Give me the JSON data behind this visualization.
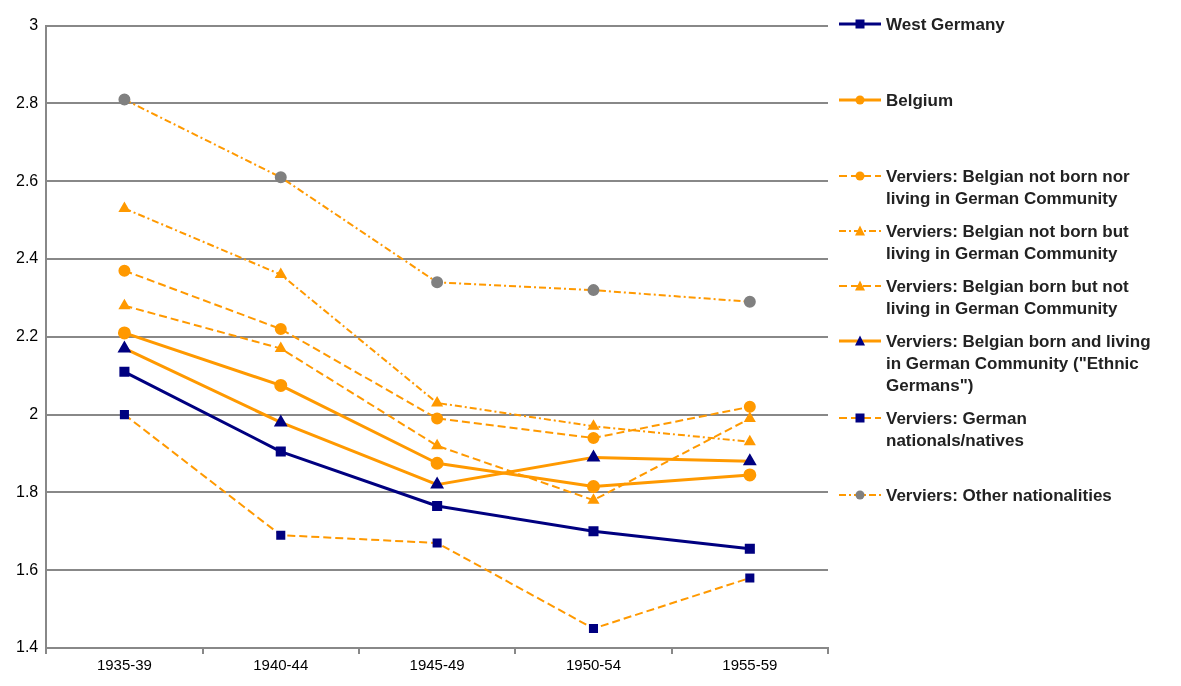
{
  "chart_data": {
    "type": "line",
    "categories": [
      "1935-39",
      "1940-44",
      "1945-49",
      "1950-54",
      "1955-59"
    ],
    "ylim": [
      1.4,
      3
    ],
    "yticks": [
      1.4,
      1.6,
      1.8,
      2,
      2.2,
      2.4,
      2.6,
      2.8,
      3
    ],
    "grid": "y",
    "legend": "right",
    "series": [
      {
        "name": "West Germany",
        "color": "#000080",
        "marker": "square",
        "line_style": "solid",
        "values": [
          2.11,
          1.905,
          1.765,
          1.7,
          1.655
        ]
      },
      {
        "name": "Belgium",
        "color": "#ff9900",
        "marker": "circle",
        "line_style": "solid",
        "values": [
          2.21,
          2.075,
          1.875,
          1.815,
          1.845
        ]
      },
      {
        "name": "Verviers: Belgian not born nor living in German Community",
        "color": "#ff9900",
        "marker": "circle",
        "line_style": "dashed",
        "values": [
          2.37,
          2.22,
          1.99,
          1.94,
          2.02
        ]
      },
      {
        "name": "Verviers: Belgian not born but living in German Community",
        "color": "#ff9900",
        "marker": "triangle",
        "line_style": "dotted",
        "values": [
          2.53,
          2.36,
          2.03,
          1.97,
          1.93
        ]
      },
      {
        "name": "Verviers: Belgian born but not living in German Community",
        "color": "#ff9900",
        "marker": "triangle",
        "line_style": "dashed",
        "values": [
          2.28,
          2.17,
          1.92,
          1.78,
          1.99
        ]
      },
      {
        "name": "Verviers: Belgian born and living in German Community (\"Ethnic Germans\")",
        "color": "#ff9900",
        "colors": [
          "#000080",
          "#000080",
          "#000080",
          "#000080",
          "#000080"
        ],
        "marker": "triangle",
        "line_style": "solid",
        "values": [
          2.17,
          1.98,
          1.82,
          1.89,
          1.88
        ]
      },
      {
        "name": "Verviers: German nationals/natives",
        "color": "#ff9900",
        "colors": [
          "#000080",
          "#000080",
          "#000080",
          "#000080",
          "#000080"
        ],
        "marker": "square",
        "line_style": "dashed",
        "values": [
          2.0,
          1.69,
          1.67,
          1.45,
          1.58
        ]
      },
      {
        "name": "Verviers: Other nationalities",
        "color": "#ff9900",
        "colors": [
          "#808080",
          "#808080",
          "#808080",
          "#808080",
          "#808080"
        ],
        "marker": "circle",
        "line_style": "dotted",
        "values": [
          2.81,
          2.61,
          2.34,
          2.32,
          2.29
        ]
      }
    ]
  }
}
